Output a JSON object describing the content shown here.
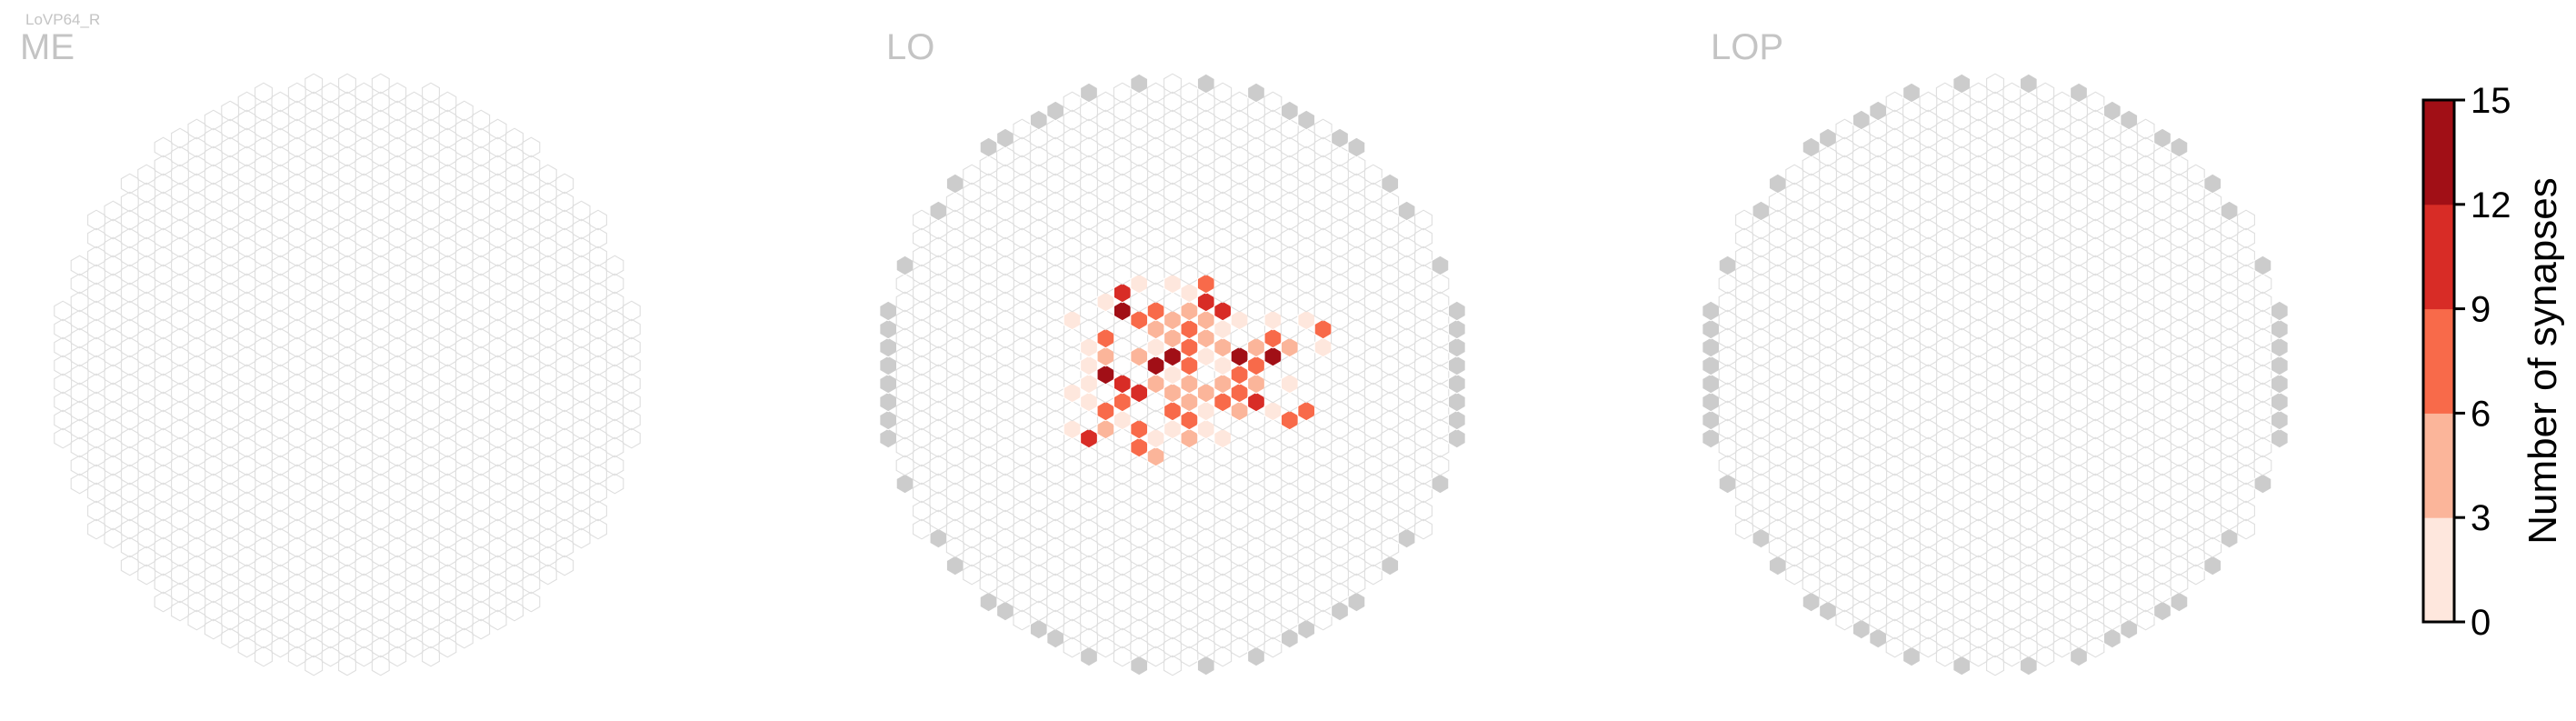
{
  "figure_label": "LoVP64_R",
  "colors": {
    "empty_cell_stroke": "#dedede",
    "boundary_cell_fill": "#cccccc",
    "colorbar_bins": [
      "#fee7dd",
      "#fbb59a",
      "#f86a4a",
      "#d82c26",
      "#a10f16"
    ]
  },
  "chart_data": [
    {
      "type": "heatmap",
      "title": "ME",
      "hex_grid": "columnar",
      "boundary_cells": "none",
      "values": []
    },
    {
      "type": "heatmap",
      "title": "LO",
      "hex_grid": "columnar",
      "boundary_cells": "gray",
      "values": [
        {
          "h": -6,
          "v": 3,
          "synapses": 1
        },
        {
          "h": -5,
          "v": 2,
          "synapses": 1
        },
        {
          "h": -4,
          "v": 4,
          "synapses": 2
        },
        {
          "h": -3,
          "v": 5,
          "synapses": 9
        },
        {
          "h": -3,
          "v": 4,
          "synapses": 12
        },
        {
          "h": -2,
          "v": 3,
          "synapses": 8
        },
        {
          "h": -2,
          "v": 1,
          "synapses": 5
        },
        {
          "h": -4,
          "v": 2,
          "synapses": 7
        },
        {
          "h": -4,
          "v": 1,
          "synapses": 3
        },
        {
          "h": -4,
          "v": 0,
          "synapses": 14
        },
        {
          "h": -3,
          "v": 0,
          "synapses": 10
        },
        {
          "h": -3,
          "v": -1,
          "synapses": 6
        },
        {
          "h": -2,
          "v": -1,
          "synapses": 10
        },
        {
          "h": -4,
          "v": -2,
          "synapses": 8
        },
        {
          "h": -4,
          "v": -3,
          "synapses": 3
        },
        {
          "h": -5,
          "v": -3,
          "synapses": 9
        },
        {
          "h": -2,
          "v": -3,
          "synapses": 8
        },
        {
          "h": -2,
          "v": -4,
          "synapses": 7
        },
        {
          "h": -1,
          "v": -3,
          "synapses": 2
        },
        {
          "h": -1,
          "v": -4,
          "synapses": 5
        },
        {
          "h": -3,
          "v": -2,
          "synapses": 2
        },
        {
          "h": -1,
          "v": 2,
          "synapses": 1
        },
        {
          "h": 0,
          "v": 5,
          "synapses": 1
        },
        {
          "h": -1,
          "v": 4,
          "synapses": 7
        },
        {
          "h": 0,
          "v": 3,
          "synapses": 4
        },
        {
          "h": -1,
          "v": 3,
          "synapses": 5
        },
        {
          "h": 0,
          "v": 2,
          "synapses": 3
        },
        {
          "h": -1,
          "v": 1,
          "synapses": 13
        },
        {
          "h": 0,
          "v": 1,
          "synapses": 14
        },
        {
          "h": -1,
          "v": 0,
          "synapses": 5
        },
        {
          "h": 1,
          "v": 2,
          "synapses": 6
        },
        {
          "h": 1,
          "v": 3,
          "synapses": 6
        },
        {
          "h": 1,
          "v": 4,
          "synapses": 5
        },
        {
          "h": 2,
          "v": 4,
          "synapses": 11
        },
        {
          "h": 2,
          "v": 5,
          "synapses": 8
        },
        {
          "h": 2,
          "v": 3,
          "synapses": 4
        },
        {
          "h": 3,
          "v": 4,
          "synapses": 11
        },
        {
          "h": 2,
          "v": 2,
          "synapses": 5
        },
        {
          "h": 2,
          "v": 1,
          "synapses": 2
        },
        {
          "h": 3,
          "v": 2,
          "synapses": 4
        },
        {
          "h": 1,
          "v": 1,
          "synapses": 7
        },
        {
          "h": 1,
          "v": 0,
          "synapses": 4
        },
        {
          "h": 0,
          "v": -1,
          "synapses": 5
        },
        {
          "h": 0,
          "v": -2,
          "synapses": 8
        },
        {
          "h": 1,
          "v": -1,
          "synapses": 4
        },
        {
          "h": 1,
          "v": -2,
          "synapses": 7
        },
        {
          "h": 2,
          "v": -1,
          "synapses": 3
        },
        {
          "h": 2,
          "v": -2,
          "synapses": 2
        },
        {
          "h": 3,
          "v": -1,
          "synapses": 7
        },
        {
          "h": 3,
          "v": 0,
          "synapses": 4
        },
        {
          "h": 3,
          "v": 1,
          "synapses": 2
        },
        {
          "h": 4,
          "v": 1,
          "synapses": 15
        },
        {
          "h": 4,
          "v": 0,
          "synapses": 6
        },
        {
          "h": 4,
          "v": -1,
          "synapses": 6
        },
        {
          "h": 5,
          "v": 2,
          "synapses": 4
        },
        {
          "h": 5,
          "v": 1,
          "synapses": 8
        },
        {
          "h": 5,
          "v": 0,
          "synapses": 4
        },
        {
          "h": 6,
          "v": 1,
          "synapses": 12
        },
        {
          "h": 6,
          "v": 2,
          "synapses": 6
        },
        {
          "h": 6,
          "v": 3,
          "synapses": 2
        },
        {
          "h": 7,
          "v": 2,
          "synapses": 4
        },
        {
          "h": 7,
          "v": 0,
          "synapses": 2
        },
        {
          "h": 5,
          "v": -1,
          "synapses": 11
        },
        {
          "h": 4,
          "v": -2,
          "synapses": 3
        },
        {
          "h": 6,
          "v": -2,
          "synapses": 1
        },
        {
          "h": 7,
          "v": -2,
          "synapses": 7
        },
        {
          "h": 8,
          "v": -2,
          "synapses": 6
        },
        {
          "h": 3,
          "v": -3,
          "synapses": 1
        },
        {
          "h": 2,
          "v": -3,
          "synapses": 2
        },
        {
          "h": 1,
          "v": -3,
          "synapses": 5
        },
        {
          "h": 0,
          "v": -3,
          "synapses": 1
        },
        {
          "h": -5,
          "v": -1,
          "synapses": 2
        },
        {
          "h": -5,
          "v": 0,
          "synapses": 1
        },
        {
          "h": -6,
          "v": -1,
          "synapses": 1
        },
        {
          "h": -6,
          "v": -3,
          "synapses": 1
        },
        {
          "h": -5,
          "v": 1,
          "synapses": 1
        },
        {
          "h": 8,
          "v": 3,
          "synapses": 1
        },
        {
          "h": 9,
          "v": 3,
          "synapses": 6
        },
        {
          "h": 9,
          "v": 2,
          "synapses": 1
        },
        {
          "h": 4,
          "v": 3,
          "synapses": 1
        },
        {
          "h": 3,
          "v": 3,
          "synapses": 1
        },
        {
          "h": 0,
          "v": 0,
          "synapses": 1
        },
        {
          "h": 1,
          "v": 5,
          "synapses": 1
        },
        {
          "h": -2,
          "v": 5,
          "synapses": 1
        }
      ]
    },
    {
      "type": "heatmap",
      "title": "LOP",
      "hex_grid": "columnar",
      "boundary_cells": "gray",
      "values": []
    }
  ],
  "colorbar": {
    "label": "Number of synapses",
    "min": 0,
    "max": 15,
    "bins": 5,
    "ticks": [
      "0",
      "3",
      "6",
      "9",
      "12",
      "15"
    ]
  }
}
